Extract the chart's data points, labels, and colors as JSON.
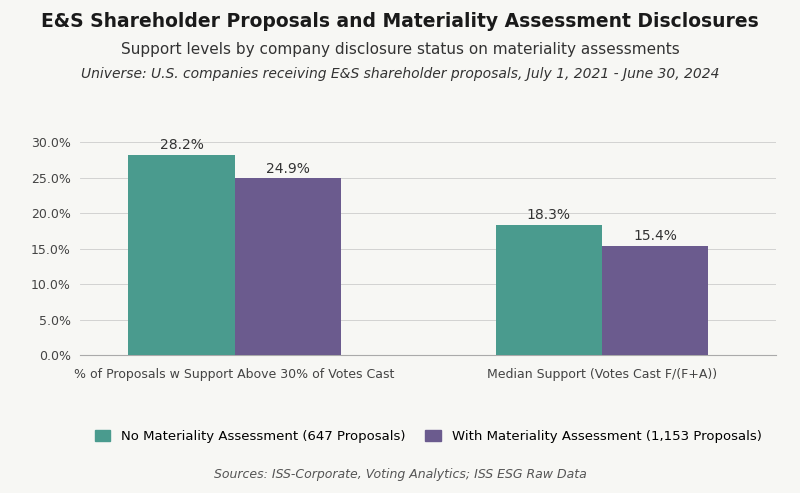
{
  "title": "E&S Shareholder Proposals and Materiality Assessment Disclosures",
  "subtitle": "Support levels by company disclosure status on materiality assessments",
  "universe_text": "Universe: U.S. companies receiving E&S shareholder proposals, July 1, 2021 - June 30, 2024",
  "source_text": "Sources: ISS-Corporate, Voting Analytics; ISS ESG Raw Data",
  "groups": [
    "% of Proposals w Support Above 30% of Votes Cast",
    "Median Support (Votes Cast F/(F+A))"
  ],
  "no_materiality_values": [
    28.2,
    18.3
  ],
  "with_materiality_values": [
    24.9,
    15.4
  ],
  "no_materiality_color": "#4a9b8e",
  "with_materiality_color": "#6b5b8e",
  "legend_no": "No Materiality Assessment (647 Proposals)",
  "legend_with": "With Materiality Assessment (1,153 Proposals)",
  "ylim": [
    0,
    32
  ],
  "yticks": [
    0,
    5,
    10,
    15,
    20,
    25,
    30
  ],
  "bar_width": 0.55,
  "group_positions": [
    1.1,
    3.0
  ],
  "xlim": [
    0.3,
    3.9
  ],
  "background_color": "#f7f7f4",
  "title_fontsize": 13.5,
  "subtitle_fontsize": 11,
  "universe_fontsize": 10,
  "source_fontsize": 9,
  "tick_fontsize": 9,
  "xlabel_fontsize": 9,
  "value_label_fontsize": 10,
  "legend_fontsize": 9.5
}
